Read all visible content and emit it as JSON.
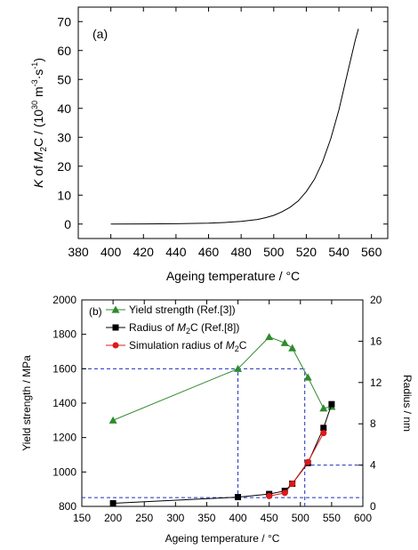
{
  "chart_data": [
    {
      "panel": "(a)",
      "type": "line",
      "xlabel_prefix": "Ageing temperature / ",
      "xlabel_unit": "°C",
      "ylabel": {
        "k": "K",
        "of": " of ",
        "m": "M",
        "sub2": "2",
        "c": "C / (10",
        "exp30": "30",
        "m_unit": " m",
        "exp_m": "-3",
        "s_unit": "·s",
        "exp_s": "-1",
        "close": ")"
      },
      "xlim": [
        380,
        570
      ],
      "ylim": [
        -5,
        75
      ],
      "xticks": [
        380,
        400,
        420,
        440,
        460,
        480,
        500,
        520,
        540,
        560
      ],
      "yticks": [
        0,
        10,
        20,
        30,
        40,
        50,
        60,
        70
      ],
      "series": [
        {
          "color": "#000000",
          "x": [
            400,
            420,
            440,
            460,
            470,
            480,
            490,
            495,
            500,
            505,
            510,
            515,
            520,
            525,
            530,
            535,
            540,
            545,
            550,
            552
          ],
          "y": [
            0.02,
            0.05,
            0.12,
            0.3,
            0.55,
            0.9,
            1.6,
            2.2,
            3.0,
            4.2,
            5.8,
            8.0,
            11.2,
            15.5,
            21.5,
            29.5,
            39.5,
            51.5,
            63.5,
            67.5
          ]
        }
      ]
    },
    {
      "panel": "(b)",
      "type": "line",
      "xlabel_prefix": "Ageing temperature / ",
      "xlabel_unit": "°C",
      "ylabel_left": "Yield strength / MPa",
      "ylabel_right": "Radius / nm",
      "xlim": [
        150,
        600
      ],
      "ylim_left": [
        800,
        2000
      ],
      "ylim_right": [
        0,
        20
      ],
      "xticks": [
        150,
        200,
        250,
        300,
        350,
        400,
        450,
        500,
        550,
        600
      ],
      "yticks_left": [
        800,
        1000,
        1200,
        1400,
        1600,
        1800,
        2000
      ],
      "yticks_right": [
        0,
        4,
        8,
        12,
        16,
        20
      ],
      "legend_position": "top-left",
      "series": [
        {
          "name": "Yield strength (Ref.[3])",
          "legend_parts": [
            "Yield strength (Ref.[3])"
          ],
          "axis": "left",
          "color": "#2e8b2e",
          "marker": "triangle",
          "x": [
            200,
            400,
            450,
            475,
            487,
            512,
            537,
            550
          ],
          "y": [
            1300,
            1600,
            1785,
            1750,
            1720,
            1550,
            1370,
            1380
          ]
        },
        {
          "name": "Radius of M2C (Ref.[8])",
          "legend_parts": [
            "Radius of ",
            "M",
            "2",
            "C (Ref.[8])"
          ],
          "axis": "right",
          "color": "#000000",
          "marker": "square",
          "x": [
            200,
            400,
            450,
            475,
            487,
            512,
            537,
            550
          ],
          "y": [
            0.3,
            0.9,
            1.2,
            1.5,
            2.2,
            4.2,
            7.6,
            9.9
          ]
        },
        {
          "name": "Simulation radius of M2C",
          "legend_parts": [
            "Simulation radius of ",
            "M",
            "2",
            "C"
          ],
          "axis": "right",
          "color": "#e01818",
          "marker": "circle",
          "x": [
            450,
            475,
            487,
            512,
            537
          ],
          "y": [
            1.0,
            1.3,
            2.2,
            4.3,
            7.1
          ]
        }
      ],
      "guide_color": "#1f2fbf",
      "guides": [
        {
          "from": [
            150,
            1600
          ],
          "to": [
            507,
            1600
          ],
          "axis": "left"
        },
        {
          "from": [
            400,
            800
          ],
          "to": [
            400,
            1600
          ],
          "axis": "left"
        },
        {
          "from": [
            507,
            800
          ],
          "to": [
            507,
            1600
          ],
          "axis": "left"
        },
        {
          "from": [
            507,
            4.0
          ],
          "to": [
            600,
            4.0
          ],
          "axis": "right"
        },
        {
          "from": [
            150,
            0.85
          ],
          "to": [
            600,
            0.85
          ],
          "axis": "right"
        }
      ]
    }
  ]
}
